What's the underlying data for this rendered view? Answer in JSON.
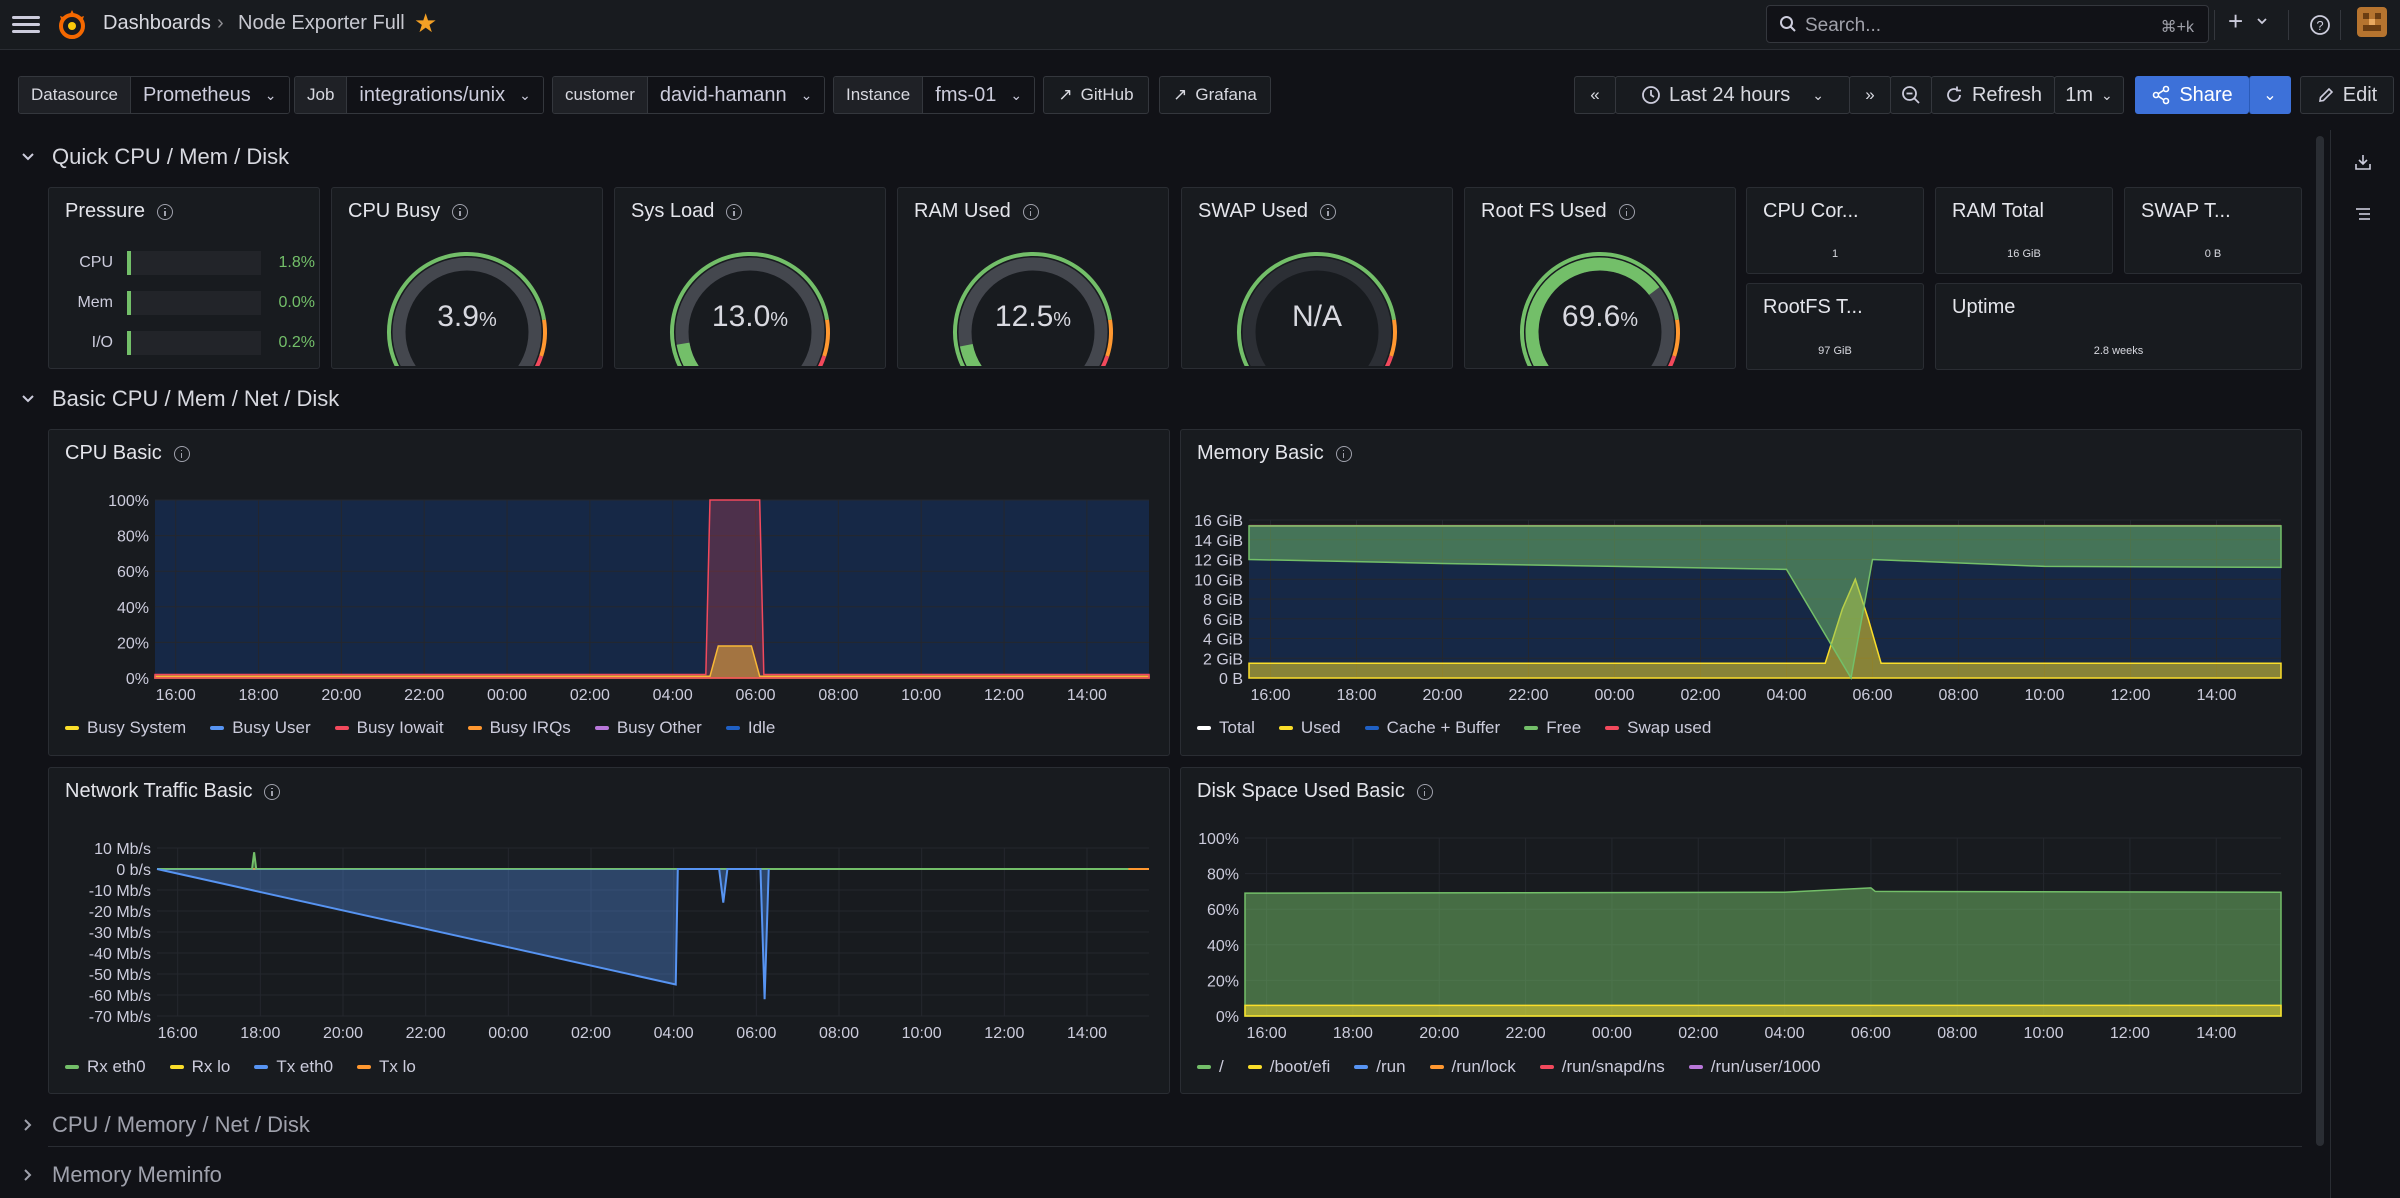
{
  "topbar": {
    "breadcrumb_root": "Dashboards",
    "breadcrumb_current": "Node Exporter Full",
    "search_placeholder": "Search...",
    "search_shortcut": "⌘+k"
  },
  "variables": [
    {
      "label": "Datasource",
      "value": "Prometheus"
    },
    {
      "label": "Job",
      "value": "integrations/unix"
    },
    {
      "label": "customer",
      "value": "david-hamann"
    },
    {
      "label": "Instance",
      "value": "fms-01"
    }
  ],
  "links": {
    "github": "GitHub",
    "grafana": "Grafana"
  },
  "time": {
    "range": "Last 24 hours",
    "refresh": "Refresh",
    "interval": "1m",
    "share": "Share",
    "edit": "Edit"
  },
  "rows": {
    "quick": "Quick CPU / Mem / Disk",
    "basic": "Basic CPU / Mem / Net / Disk",
    "cpu_mem_net_disk": "CPU / Memory / Net / Disk",
    "meminfo": "Memory Meminfo"
  },
  "pressure": {
    "title": "Pressure",
    "items": [
      {
        "label": "CPU",
        "value": "1.8%",
        "fraction": 0.018
      },
      {
        "label": "Mem",
        "value": "0.0%",
        "fraction": 0.0
      },
      {
        "label": "I/O",
        "value": "0.2%",
        "fraction": 0.002
      }
    ]
  },
  "gauges": [
    {
      "title": "CPU Busy",
      "value": "3.9",
      "unit": "%",
      "percent": 3.9
    },
    {
      "title": "Sys Load",
      "value": "13.0",
      "unit": "%",
      "percent": 13.0
    },
    {
      "title": "RAM Used",
      "value": "12.5",
      "unit": "%",
      "percent": 12.5
    },
    {
      "title": "SWAP Used",
      "value": "N/A",
      "unit": "",
      "percent": null
    },
    {
      "title": "Root FS Used",
      "value": "69.6",
      "unit": "%",
      "percent": 69.6
    }
  ],
  "stats": [
    {
      "title": "CPU Cor...",
      "value": "1"
    },
    {
      "title": "RAM Total",
      "value": "16 GiB"
    },
    {
      "title": "SWAP T...",
      "value": "0 B"
    },
    {
      "title": "RootFS T...",
      "value": "97 GiB"
    },
    {
      "title": "Uptime",
      "value": "2.8 weeks"
    }
  ],
  "colors": {
    "green": "#73bf69",
    "yellow": "#fade2a",
    "blue": "#5794f2",
    "red": "#f2495c",
    "orange": "#ff9830",
    "purple": "#b877d9",
    "navy": "#1f60c4",
    "accent": "#3d71d9"
  },
  "chart_data": [
    {
      "type": "area",
      "title": "CPU Basic",
      "x_ticks": [
        "16:00",
        "18:00",
        "20:00",
        "22:00",
        "00:00",
        "02:00",
        "04:00",
        "06:00",
        "08:00",
        "10:00",
        "12:00",
        "14:00"
      ],
      "y_ticks": [
        "100%",
        "80%",
        "60%",
        "40%",
        "20%",
        "0%"
      ],
      "ylim": [
        0,
        100
      ],
      "legend": [
        "Busy System",
        "Busy User",
        "Busy Iowait",
        "Busy IRQs",
        "Busy Other",
        "Idle"
      ],
      "legend_colors": [
        "#fade2a",
        "#5794f2",
        "#f2495c",
        "#ff9830",
        "#b877d9",
        "#1f60c4"
      ],
      "series": [
        {
          "name": "Busy System",
          "values": [
            [
              15.5,
              1
            ],
            [
              19,
              1
            ],
            [
              23,
              1
            ],
            [
              3,
              1
            ],
            [
              4.9,
              1
            ],
            [
              5.1,
              18
            ],
            [
              5.9,
              18
            ],
            [
              6.1,
              1
            ],
            [
              10,
              1
            ],
            [
              14,
              1
            ],
            [
              15.5,
              1
            ]
          ]
        },
        {
          "name": "Busy Other",
          "values": [
            [
              15.5,
              2
            ],
            [
              4.8,
              2
            ],
            [
              4.9,
              100
            ],
            [
              6.1,
              100
            ],
            [
              6.2,
              2
            ],
            [
              15.5,
              2
            ]
          ]
        }
      ]
    },
    {
      "type": "area",
      "title": "Memory Basic",
      "x_ticks": [
        "16:00",
        "18:00",
        "20:00",
        "22:00",
        "00:00",
        "02:00",
        "04:00",
        "06:00",
        "08:00",
        "10:00",
        "12:00",
        "14:00"
      ],
      "y_ticks": [
        "16 GiB",
        "14 GiB",
        "12 GiB",
        "10 GiB",
        "8 GiB",
        "6 GiB",
        "4 GiB",
        "2 GiB",
        "0 B"
      ],
      "ylim": [
        0,
        16
      ],
      "legend": [
        "Total",
        "Used",
        "Cache + Buffer",
        "Free",
        "Swap used"
      ],
      "legend_colors": [
        "#ffffff",
        "#fade2a",
        "#1f60c4",
        "#73bf69",
        "#f2495c"
      ],
      "series": [
        {
          "name": "Total",
          "values": [
            [
              15.5,
              15.4
            ],
            [
              15.5,
              15.4
            ]
          ]
        },
        {
          "name": "Used",
          "values": [
            [
              15.5,
              1.5
            ],
            [
              4.9,
              1.5
            ],
            [
              5.3,
              7
            ],
            [
              5.6,
              10
            ],
            [
              5.9,
              6
            ],
            [
              6.2,
              1.5
            ],
            [
              15.5,
              1.5
            ]
          ]
        },
        {
          "name": "Free",
          "values": [
            [
              15.5,
              12
            ],
            [
              20,
              11.6
            ],
            [
              24,
              11.3
            ],
            [
              4,
              11
            ],
            [
              5.5,
              0
            ],
            [
              6,
              12
            ],
            [
              10,
              11.3
            ],
            [
              15.5,
              11.2
            ]
          ]
        }
      ]
    },
    {
      "type": "line",
      "title": "Network Traffic Basic",
      "x_ticks": [
        "16:00",
        "18:00",
        "20:00",
        "22:00",
        "00:00",
        "02:00",
        "04:00",
        "06:00",
        "08:00",
        "10:00",
        "12:00",
        "14:00"
      ],
      "y_ticks": [
        "10 Mb/s",
        "0 b/s",
        "-10 Mb/s",
        "-20 Mb/s",
        "-30 Mb/s",
        "-40 Mb/s",
        "-50 Mb/s",
        "-60 Mb/s",
        "-70 Mb/s"
      ],
      "ylim": [
        -70,
        10
      ],
      "legend": [
        "Rx eth0",
        "Rx lo",
        "Tx eth0",
        "Tx lo"
      ],
      "legend_colors": [
        "#73bf69",
        "#fade2a",
        "#5794f2",
        "#ff9830"
      ],
      "series": [
        {
          "name": "Rx eth0",
          "values": [
            [
              15,
              0
            ],
            [
              17.8,
              0
            ],
            [
              17.85,
              8
            ],
            [
              17.9,
              0
            ],
            [
              15,
              0
            ]
          ]
        },
        {
          "name": "Tx eth0",
          "values": [
            [
              4,
              0
            ],
            [
              4.05,
              -55
            ],
            [
              4.1,
              0
            ],
            [
              5.1,
              0
            ],
            [
              5.2,
              -16
            ],
            [
              5.3,
              0
            ],
            [
              6.1,
              0
            ],
            [
              6.2,
              -62
            ],
            [
              6.3,
              0
            ]
          ]
        }
      ]
    },
    {
      "type": "area",
      "title": "Disk Space Used Basic",
      "x_ticks": [
        "16:00",
        "18:00",
        "20:00",
        "22:00",
        "00:00",
        "02:00",
        "04:00",
        "06:00",
        "08:00",
        "10:00",
        "12:00",
        "14:00"
      ],
      "y_ticks": [
        "100%",
        "80%",
        "60%",
        "40%",
        "20%",
        "0%"
      ],
      "ylim": [
        0,
        100
      ],
      "legend": [
        "/",
        "/boot/efi",
        "/run",
        "/run/lock",
        "/run/snapd/ns",
        "/run/user/1000"
      ],
      "legend_colors": [
        "#73bf69",
        "#fade2a",
        "#5794f2",
        "#ff9830",
        "#f2495c",
        "#b877d9"
      ],
      "series": [
        {
          "name": "/",
          "values": [
            [
              15.5,
              69
            ],
            [
              4,
              69.5
            ],
            [
              6,
              72
            ],
            [
              6.1,
              70
            ],
            [
              15.5,
              69.5
            ]
          ]
        },
        {
          "name": "/boot/efi",
          "values": [
            [
              15.5,
              6
            ],
            [
              15.5,
              6
            ]
          ]
        }
      ]
    }
  ]
}
